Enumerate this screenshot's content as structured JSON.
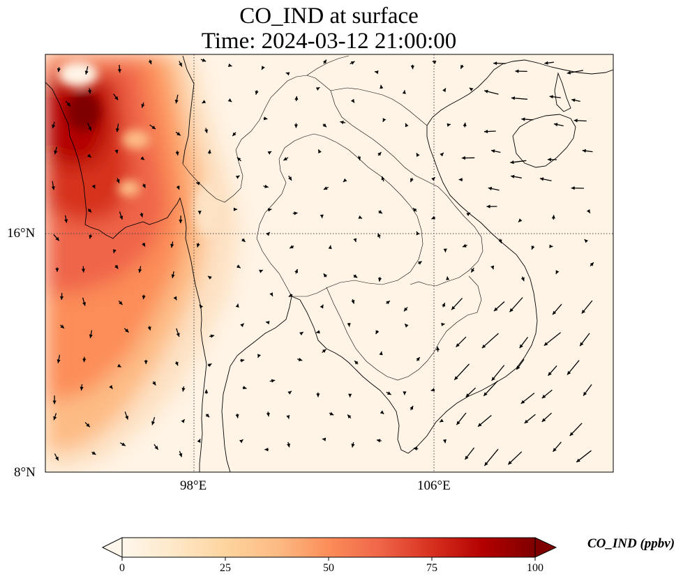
{
  "title": {
    "line1": "CO_IND at surface",
    "line2": "Time: 2024-03-12 21:00:00"
  },
  "axes": {
    "x_ticks": [
      "98°E",
      "106°E"
    ],
    "y_ticks": [
      "16°N",
      "8°N"
    ],
    "lon_ticks": [
      98,
      106
    ],
    "lat_ticks": [
      16,
      8
    ],
    "gridlines": "dotted"
  },
  "colorbar": {
    "label": "CO_IND (ppbv)",
    "ticks": [
      "0",
      "25",
      "50",
      "75",
      "100"
    ],
    "range": [
      0,
      100
    ],
    "extend": "both",
    "colormap": "OrRd",
    "stops": [
      "#fff7ec",
      "#fee8c8",
      "#fdd49e",
      "#fdbb84",
      "#fc8d59",
      "#ef6548",
      "#d7301f",
      "#b30000",
      "#7f0000"
    ]
  },
  "colors": {
    "coast": "#000000",
    "vector": "#000000",
    "background_field": "#fff4e6"
  }
}
